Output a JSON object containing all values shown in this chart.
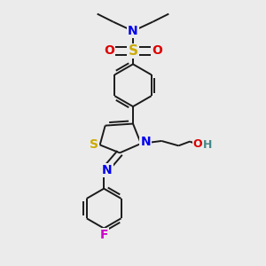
{
  "bg_color": "#ebebeb",
  "bond_color": "#1a1a1a",
  "bond_width": 1.4,
  "dbo": 0.013,
  "fig_size": [
    3.0,
    3.0
  ],
  "dpi": 100,
  "colors": {
    "N": "#0000ee",
    "S": "#ccaa00",
    "O": "#dd0000",
    "F": "#cc00cc",
    "H_teal": "#448888",
    "C": "#1a1a1a"
  }
}
